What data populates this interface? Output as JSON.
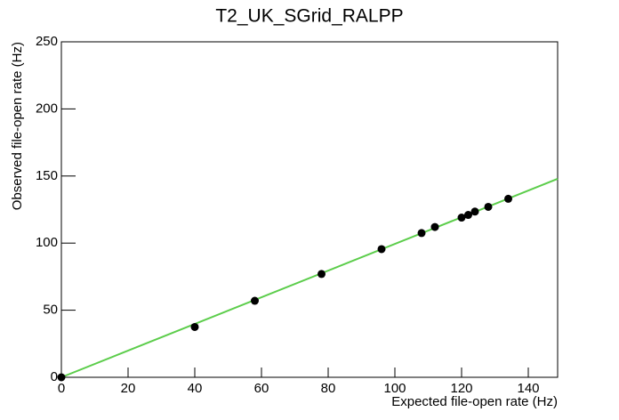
{
  "chart_data": {
    "type": "scatter",
    "title": "T2_UK_SGrid_RALPP",
    "x_label": "Expected file-open rate (Hz)",
    "y_label": "Observed file-open rate (Hz)",
    "x": [
      0,
      40,
      58,
      78,
      96,
      108,
      112,
      120,
      122,
      124,
      128,
      134
    ],
    "values": [
      0,
      37.5,
      57,
      77,
      95.5,
      107.5,
      112,
      119,
      121,
      123.5,
      127,
      133
    ],
    "color": "#000000",
    "fit": {
      "x": [
        0,
        148.8
      ],
      "values": [
        0,
        147.9
      ],
      "color": "#5ccd4b"
    },
    "xlim": [
      0,
      148.8
    ],
    "xticks": [
      0,
      20,
      40,
      60,
      80,
      100,
      120,
      140
    ],
    "ylim": [
      0,
      250
    ],
    "yticks": [
      0,
      50,
      100,
      150,
      200,
      250
    ]
  }
}
